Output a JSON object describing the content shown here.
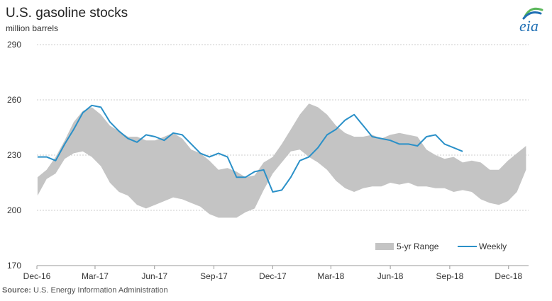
{
  "title": "U.S. gasoline stocks",
  "subtitle": "million barrels",
  "source_label": "Source:",
  "source_text": "U.S. Energy Information Administration",
  "logo_text": "eia",
  "colors": {
    "range_fill": "#c4c4c4",
    "weekly_line": "#2a90c8",
    "grid": "#cccccc",
    "logo_green": "#5cb85c",
    "logo_blue": "#1f6fb4"
  },
  "chart_data": {
    "type": "area",
    "x_unit": "month",
    "xlim": [
      "Dec-16",
      "Jan-19"
    ],
    "ylim": [
      170,
      290
    ],
    "yticks": [
      170,
      200,
      230,
      260,
      290
    ],
    "xticks": [
      "Dec-16",
      "Mar-17",
      "Jun-17",
      "Sep-17",
      "Dec-17",
      "Mar-18",
      "Jun-18",
      "Sep-18",
      "Dec-18"
    ],
    "grid": true,
    "legend": {
      "position": "bottom-right",
      "items": [
        {
          "label": "5-yr Range",
          "kind": "area"
        },
        {
          "label": "Weekly",
          "kind": "line"
        }
      ]
    },
    "series": [
      {
        "name": "5-yr Range",
        "x": [
          "2016-12-02",
          "2016-12-16",
          "2016-12-30",
          "2017-01-13",
          "2017-01-27",
          "2017-02-10",
          "2017-02-24",
          "2017-03-10",
          "2017-03-24",
          "2017-04-07",
          "2017-04-21",
          "2017-05-05",
          "2017-05-19",
          "2017-06-02",
          "2017-06-16",
          "2017-06-30",
          "2017-07-14",
          "2017-07-28",
          "2017-08-11",
          "2017-08-25",
          "2017-09-08",
          "2017-09-22",
          "2017-10-06",
          "2017-10-20",
          "2017-11-03",
          "2017-11-17",
          "2017-12-01",
          "2017-12-15",
          "2017-12-29",
          "2018-01-12",
          "2018-01-26",
          "2018-02-09",
          "2018-02-23",
          "2018-03-09",
          "2018-03-23",
          "2018-04-06",
          "2018-04-20",
          "2018-05-04",
          "2018-05-18",
          "2018-06-01",
          "2018-06-15",
          "2018-06-29",
          "2018-07-13",
          "2018-07-27",
          "2018-08-10",
          "2018-08-24",
          "2018-09-07",
          "2018-09-21",
          "2018-10-05",
          "2018-10-19",
          "2018-11-02",
          "2018-11-16",
          "2018-11-30",
          "2018-12-14",
          "2018-12-28"
        ],
        "high": [
          218,
          222,
          229,
          238,
          248,
          254,
          256,
          252,
          246,
          243,
          240,
          240,
          238,
          238,
          240,
          242,
          239,
          233,
          231,
          227,
          222,
          223,
          221,
          218,
          219,
          226,
          229,
          236,
          244,
          252,
          258,
          256,
          252,
          246,
          242,
          240,
          240,
          241,
          239,
          241,
          242,
          241,
          240,
          233,
          230,
          228,
          229,
          226,
          227,
          226,
          222,
          222,
          227,
          231,
          235
        ],
        "low": [
          208,
          217,
          220,
          228,
          231,
          232,
          229,
          224,
          215,
          210,
          208,
          203,
          201,
          203,
          205,
          207,
          206,
          204,
          202,
          198,
          196,
          196,
          196,
          199,
          201,
          211,
          220,
          226,
          232,
          233,
          229,
          226,
          222,
          216,
          212,
          210,
          212,
          213,
          213,
          215,
          214,
          215,
          213,
          213,
          212,
          212,
          210,
          211,
          210,
          206,
          204,
          203,
          205,
          210,
          222
        ]
      },
      {
        "name": "Weekly",
        "x": [
          "2016-12-02",
          "2016-12-16",
          "2016-12-30",
          "2017-01-13",
          "2017-01-27",
          "2017-02-10",
          "2017-02-24",
          "2017-03-10",
          "2017-03-24",
          "2017-04-07",
          "2017-04-21",
          "2017-05-05",
          "2017-05-19",
          "2017-06-02",
          "2017-06-16",
          "2017-06-30",
          "2017-07-14",
          "2017-07-28",
          "2017-08-11",
          "2017-08-25",
          "2017-09-08",
          "2017-09-22",
          "2017-10-06",
          "2017-10-20",
          "2017-11-03",
          "2017-11-17",
          "2017-12-01",
          "2017-12-15",
          "2017-12-29",
          "2018-01-12",
          "2018-01-26",
          "2018-02-09",
          "2018-02-23",
          "2018-03-09",
          "2018-03-23",
          "2018-04-06",
          "2018-04-20",
          "2018-05-04",
          "2018-05-18",
          "2018-06-01",
          "2018-06-15",
          "2018-06-29",
          "2018-07-13",
          "2018-07-27",
          "2018-08-10",
          "2018-08-24",
          "2018-09-07",
          "2018-09-21"
        ],
        "values": [
          229,
          229,
          227,
          236,
          244,
          253,
          257,
          256,
          248,
          243,
          239,
          237,
          241,
          240,
          238,
          242,
          241,
          236,
          231,
          229,
          231,
          229,
          218,
          218,
          221,
          222,
          210,
          211,
          218,
          227,
          229,
          234,
          241,
          244,
          249,
          252,
          246,
          240,
          239,
          238,
          236,
          236,
          235,
          240,
          241,
          236,
          234,
          232
        ]
      }
    ]
  }
}
